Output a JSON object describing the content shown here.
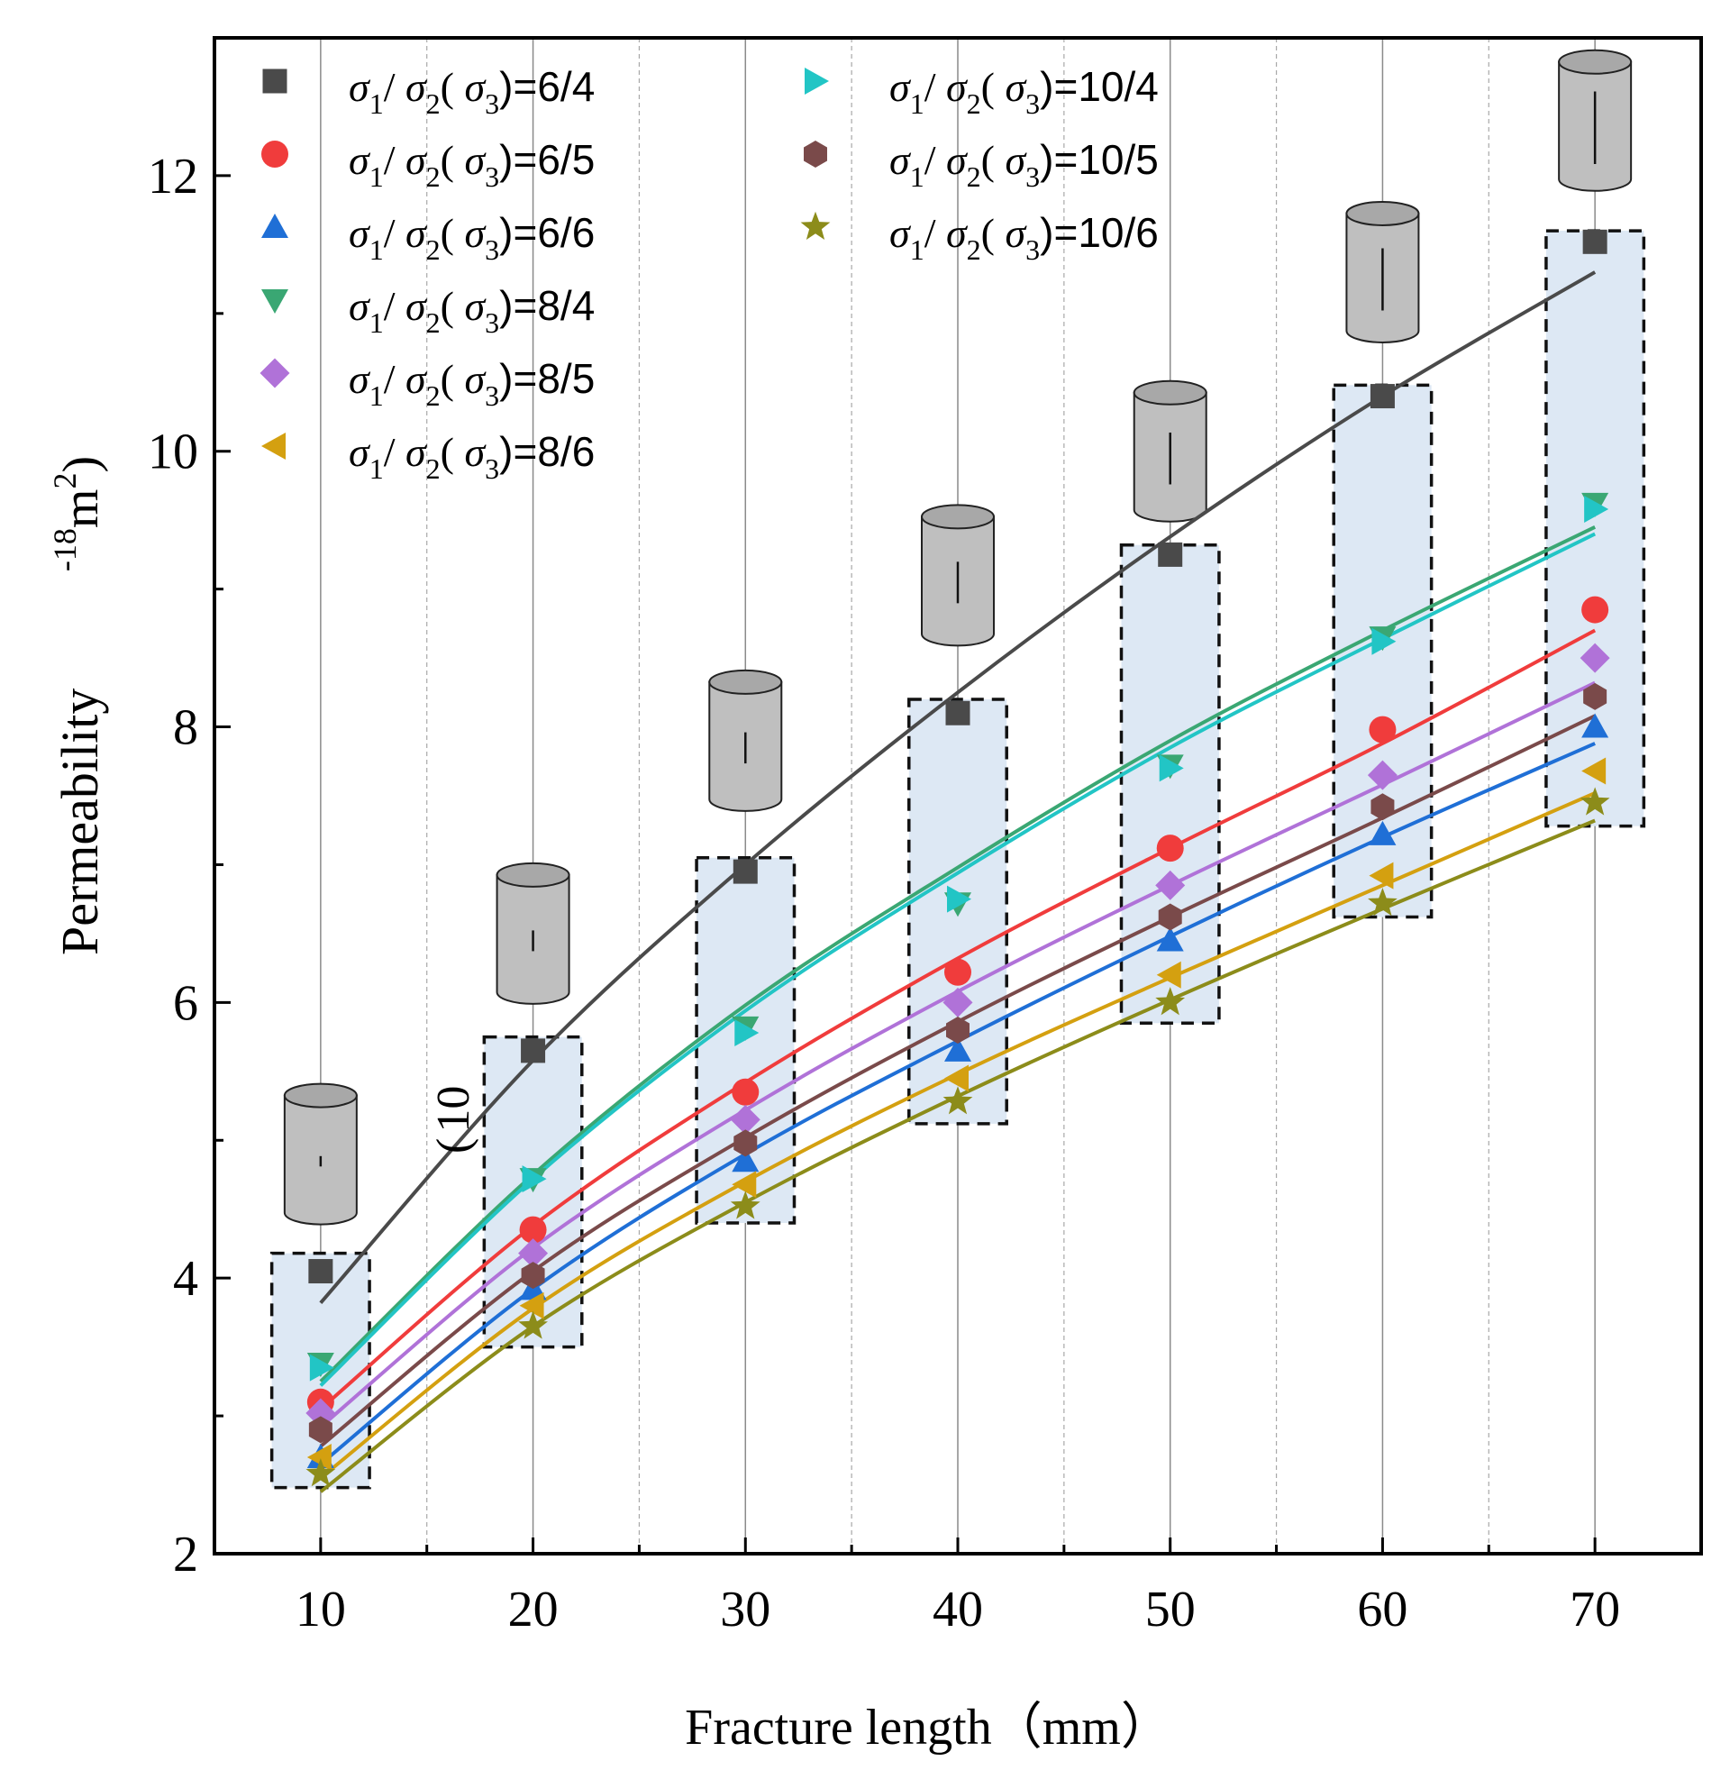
{
  "chart_data": {
    "type": "scatter",
    "title": "",
    "xlabel": "Fracture length（mm）",
    "ylabel": "Permeability（×10⁻¹⁸m²）",
    "ylabel_parts": {
      "main": "Permeability",
      "paren": "(",
      "ten": "10",
      "exp": "-18",
      "unit": "m",
      "unit_exp": "2",
      "close": ")"
    },
    "xlim": [
      5,
      75
    ],
    "ylim": [
      2,
      13
    ],
    "x": [
      10,
      20,
      30,
      40,
      50,
      60,
      70
    ],
    "x_ticks": [
      "10",
      "20",
      "30",
      "40",
      "50",
      "60",
      "70"
    ],
    "y_ticks": [
      "2",
      "4",
      "6",
      "8",
      "10",
      "12"
    ],
    "grid": "vertical",
    "legend_position": "top-left",
    "legend_prefix": [
      "σ",
      "1",
      "/ ",
      "σ",
      "2",
      "( ",
      "σ",
      "3",
      ")="
    ],
    "series": [
      {
        "name": "6/4",
        "label": "=6/4",
        "marker": "square",
        "color": "#4a4a4a",
        "values": [
          4.05,
          5.65,
          6.95,
          8.1,
          9.25,
          10.4,
          11.52
        ]
      },
      {
        "name": "6/5",
        "label": "=6/5",
        "marker": "circle",
        "color": "#f03c3c",
        "values": [
          3.1,
          4.35,
          5.35,
          6.22,
          7.12,
          7.98,
          8.85
        ]
      },
      {
        "name": "6/6",
        "label": "=6/6",
        "marker": "triangle-up",
        "color": "#1f6fd6",
        "values": [
          2.7,
          3.92,
          4.85,
          5.65,
          6.45,
          7.22,
          8.0
        ]
      },
      {
        "name": "8/4",
        "label": "=8/4",
        "marker": "triangle-down",
        "color": "#3aa773",
        "values": [
          3.38,
          4.72,
          5.82,
          6.72,
          7.72,
          8.65,
          9.62
        ]
      },
      {
        "name": "8/5",
        "label": "=8/5",
        "marker": "diamond",
        "color": "#b072d8",
        "values": [
          3.02,
          4.18,
          5.15,
          6.0,
          6.85,
          7.65,
          8.5
        ]
      },
      {
        "name": "8/6",
        "label": "=8/6",
        "marker": "triangle-left",
        "color": "#d4a010",
        "values": [
          2.7,
          3.8,
          4.68,
          5.45,
          6.2,
          6.92,
          7.68
        ]
      },
      {
        "name": "10/4",
        "label": "=10/4",
        "marker": "triangle-right",
        "color": "#22c5c5",
        "values": [
          3.35,
          4.72,
          5.78,
          6.75,
          7.7,
          8.62,
          9.58
        ]
      },
      {
        "name": "10/5",
        "label": "=10/5",
        "marker": "hexagon",
        "color": "#7a4a4a",
        "values": [
          2.9,
          4.02,
          4.98,
          5.8,
          6.62,
          7.42,
          8.22
        ]
      },
      {
        "name": "10/6",
        "label": "=10/6",
        "marker": "star",
        "color": "#8c8c1a",
        "values": [
          2.58,
          3.65,
          4.52,
          5.28,
          6.0,
          6.72,
          7.45
        ]
      }
    ],
    "fits": [
      {
        "name": "6/4",
        "color": "#4a4a4a",
        "values": [
          3.82,
          5.58,
          7.0,
          8.25,
          9.38,
          10.4,
          11.3
        ]
      },
      {
        "name": "6/5",
        "color": "#f03c3c",
        "values": [
          3.05,
          4.38,
          5.42,
          6.32,
          7.12,
          7.88,
          8.7
        ]
      },
      {
        "name": "6/6",
        "color": "#1f6fd6",
        "values": [
          2.65,
          3.92,
          4.9,
          5.72,
          6.48,
          7.2,
          7.88
        ]
      },
      {
        "name": "8/4",
        "color": "#3aa773",
        "values": [
          3.25,
          4.75,
          5.98,
          6.98,
          7.9,
          8.7,
          9.45
        ]
      },
      {
        "name": "8/5",
        "color": "#b072d8",
        "values": [
          2.92,
          4.22,
          5.22,
          6.08,
          6.85,
          7.58,
          8.32
        ]
      },
      {
        "name": "8/6",
        "color": "#d4a010",
        "values": [
          2.55,
          3.78,
          4.7,
          5.48,
          6.18,
          6.85,
          7.52
        ]
      },
      {
        "name": "10/4",
        "color": "#22c5c5",
        "values": [
          3.22,
          4.72,
          5.94,
          6.94,
          7.85,
          8.64,
          9.4
        ]
      },
      {
        "name": "10/5",
        "color": "#7a4a4a",
        "values": [
          2.78,
          4.05,
          5.02,
          5.86,
          6.62,
          7.34,
          8.08
        ]
      },
      {
        "name": "10/6",
        "color": "#8c8c1a",
        "values": [
          2.45,
          3.65,
          4.55,
          5.32,
          6.02,
          6.68,
          7.32
        ]
      }
    ],
    "range_boxes": [
      {
        "x": 10,
        "y_min": 2.48,
        "y_max": 4.18
      },
      {
        "x": 20,
        "y_min": 3.5,
        "y_max": 5.75
      },
      {
        "x": 30,
        "y_min": 4.4,
        "y_max": 7.05
      },
      {
        "x": 40,
        "y_min": 5.12,
        "y_max": 8.2
      },
      {
        "x": 50,
        "y_min": 5.85,
        "y_max": 9.32
      },
      {
        "x": 60,
        "y_min": 6.62,
        "y_max": 10.48
      },
      {
        "x": 70,
        "y_min": 7.28,
        "y_max": 11.6
      }
    ],
    "specimen_icons": [
      {
        "x": 10,
        "center_y": 4.9,
        "fracture_length": 10
      },
      {
        "x": 20,
        "center_y": 6.5,
        "fracture_length": 20
      },
      {
        "x": 30,
        "center_y": 7.9,
        "fracture_length": 30
      },
      {
        "x": 40,
        "center_y": 9.1,
        "fracture_length": 40
      },
      {
        "x": 50,
        "center_y": 10.0,
        "fracture_length": 50
      },
      {
        "x": 60,
        "center_y": 11.3,
        "fracture_length": 60
      },
      {
        "x": 70,
        "center_y": 12.4,
        "fracture_length": 70
      }
    ],
    "colors": {
      "box_fill": "#dde8f4",
      "icon_fill": "#bfbfbf",
      "gridline": "#9a9a9a",
      "axis": "#000000"
    }
  }
}
